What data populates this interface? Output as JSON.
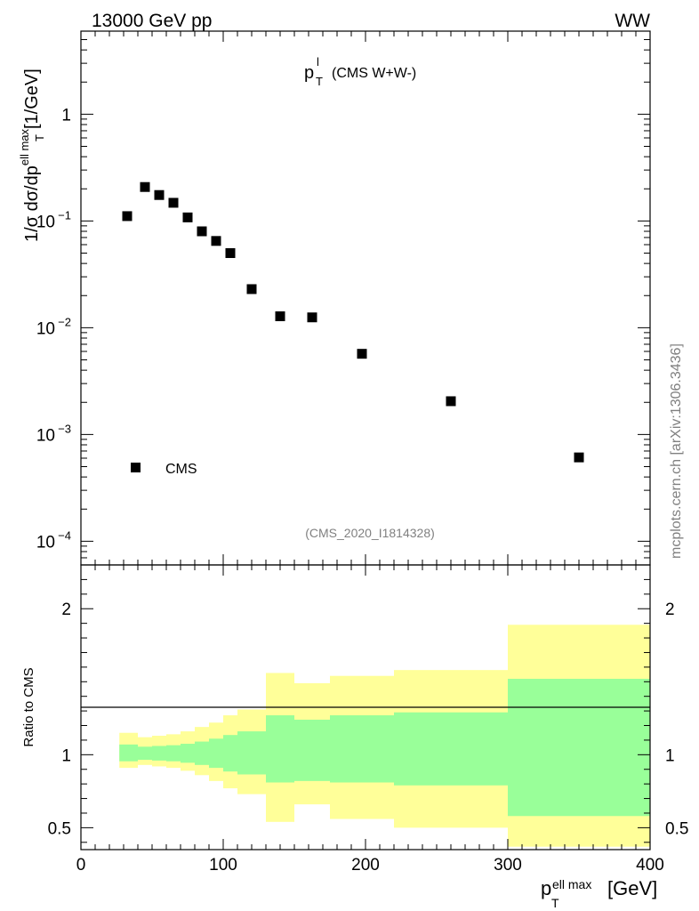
{
  "header": {
    "energy_label": "13000 GeV pp",
    "process_label": "WW"
  },
  "watermark": "mcplots.cern.ch [arXiv:1306.3436]",
  "chart_data": [
    {
      "type": "scatter",
      "panel": "main",
      "title_main": "p",
      "title_sup": "l",
      "title_sub": "T",
      "title_suffix": "(CMS W+W-)",
      "analysis_id": "(CMS_2020_I1814328)",
      "ylabel": {
        "prefix": "1/σ dσ/dp",
        "sup": "ell max",
        "sub": "T",
        "unit": "[1/GeV]"
      },
      "yscale": "log",
      "ylim": [
        6e-05,
        6
      ],
      "xlim": [
        0,
        400
      ],
      "y_ticks": [
        {
          "mant": "10",
          "exp": "−4",
          "value": 0.0001
        },
        {
          "mant": "10",
          "exp": "−3",
          "value": 0.001
        },
        {
          "mant": "10",
          "exp": "−2",
          "value": 0.01
        },
        {
          "mant": "10",
          "exp": "−1",
          "value": 0.1
        },
        {
          "mant": "1",
          "exp": "",
          "value": 1
        }
      ],
      "legend": {
        "label": "CMS",
        "position": "bottom-left"
      },
      "series": [
        {
          "name": "CMS",
          "x": [
            32.5,
            45,
            55,
            65,
            75,
            85,
            95,
            105,
            120,
            140,
            162.5,
            197.5,
            260,
            350
          ],
          "values": [
            0.111,
            0.208,
            0.175,
            0.148,
            0.108,
            0.08,
            0.065,
            0.05,
            0.023,
            0.0128,
            0.0125,
            0.0057,
            0.00205,
            0.00061
          ]
        }
      ]
    },
    {
      "type": "area",
      "panel": "ratio",
      "ylabel": "Ratio to CMS",
      "xlabel": {
        "main": "p",
        "sup": "ell max",
        "sub": "T",
        "unit": "[GeV]"
      },
      "xlim": [
        0,
        400
      ],
      "ylim": [
        0.35,
        2.3
      ],
      "x_ticks": [
        "0",
        "100",
        "200",
        "300",
        "400"
      ],
      "y_ticks": [
        "0.5",
        "1",
        "2"
      ],
      "bin_edges": [
        27,
        40,
        50,
        60,
        70,
        80,
        90,
        100,
        110,
        130,
        150,
        175,
        220,
        300,
        400
      ],
      "yellow_band": {
        "low": [
          0.91,
          0.93,
          0.92,
          0.91,
          0.89,
          0.86,
          0.82,
          0.77,
          0.73,
          0.54,
          0.66,
          0.56,
          0.5,
          0.37
        ],
        "high": [
          1.15,
          1.12,
          1.13,
          1.14,
          1.16,
          1.19,
          1.22,
          1.27,
          1.31,
          1.56,
          1.49,
          1.54,
          1.58,
          1.89
        ]
      },
      "green_band": {
        "low": [
          0.955,
          0.965,
          0.96,
          0.955,
          0.945,
          0.93,
          0.91,
          0.885,
          0.865,
          0.81,
          0.82,
          0.81,
          0.79,
          0.58
        ],
        "high": [
          1.07,
          1.055,
          1.06,
          1.065,
          1.075,
          1.09,
          1.11,
          1.135,
          1.16,
          1.27,
          1.24,
          1.27,
          1.29,
          1.52
        ]
      },
      "colors": {
        "yellow": "#ffff99",
        "green": "#99ff99"
      }
    }
  ]
}
